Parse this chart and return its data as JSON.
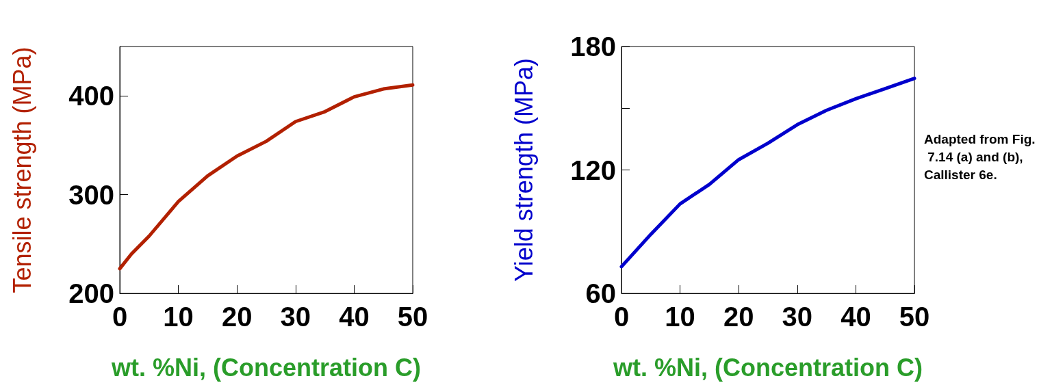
{
  "chart_data": [
    {
      "type": "line",
      "ylabel": "Tensile strength (MPa)",
      "xlabel": "wt. %Ni, (Concentration C)",
      "x": [
        0,
        2,
        5,
        10,
        15,
        20,
        25,
        30,
        35,
        40,
        45,
        50
      ],
      "series": [
        {
          "color": "#b22000",
          "values": [
            225,
            240,
            258,
            293,
            319,
            339,
            354,
            374,
            384,
            399,
            407,
            411
          ]
        }
      ],
      "xlim": [
        0,
        50
      ],
      "xticks": [
        0,
        10,
        20,
        30,
        40,
        50
      ],
      "ylim": [
        200,
        450
      ],
      "yticks": [
        200,
        300,
        400
      ],
      "grid": false,
      "marker": "none",
      "line_style": "solid"
    },
    {
      "type": "line",
      "ylabel": "Yield strength (MPa)",
      "xlabel": "wt. %Ni, (Concentration C)",
      "x": [
        0,
        5,
        10,
        15,
        20,
        25,
        30,
        35,
        40,
        45,
        50
      ],
      "series": [
        {
          "color": "#0000cc",
          "values": [
            73,
            88.7,
            103.5,
            113,
            125,
            133,
            142,
            149,
            154.6,
            159.5,
            164.5
          ]
        }
      ],
      "xlim": [
        0,
        50
      ],
      "xticks": [
        0,
        10,
        20,
        30,
        40,
        50
      ],
      "ylim": [
        60,
        180
      ],
      "yticks": [
        60,
        {
          "value": 150,
          "label": null
        },
        120,
        180
      ],
      "grid": false,
      "marker": "none",
      "line_style": "solid",
      "annotations": [
        "Adapted from Fig. 7.14 (a) and (b), Callister 6e."
      ]
    }
  ]
}
